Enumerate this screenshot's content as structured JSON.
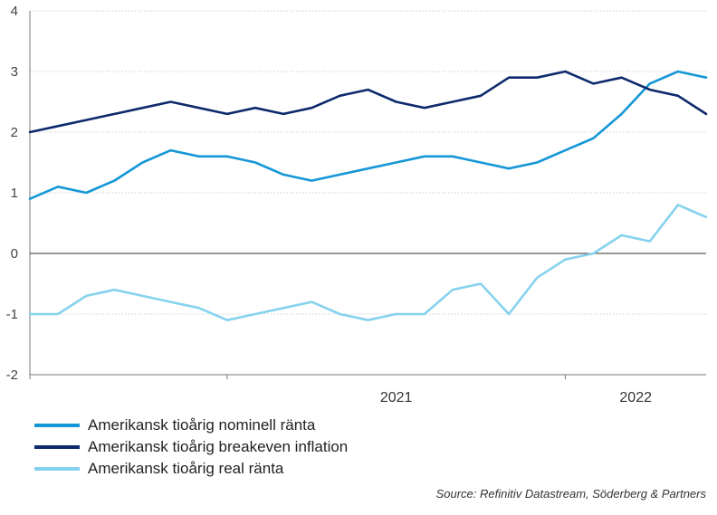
{
  "chart_data": {
    "type": "line",
    "x_start": "2020-06",
    "x_end": "2022-06",
    "x_ticks": [
      "2021",
      "2022"
    ],
    "y_ticks": [
      -2,
      -1,
      0,
      1,
      2,
      3,
      4
    ],
    "ylim": [
      -2,
      4
    ],
    "grid": true,
    "legend_position": "bottom-left",
    "series": [
      {
        "name": "Amerikansk tioårig nominell ränta",
        "color": "#1597d6",
        "x": [
          "2020-06",
          "2020-07",
          "2020-08",
          "2020-09",
          "2020-10",
          "2020-11",
          "2020-12",
          "2021-01",
          "2021-02",
          "2021-03",
          "2021-04",
          "2021-05",
          "2021-06",
          "2021-07",
          "2021-08",
          "2021-09",
          "2021-10",
          "2021-11",
          "2021-12",
          "2022-01",
          "2022-02",
          "2022-03",
          "2022-04",
          "2022-05",
          "2022-06"
        ],
        "values": [
          0.9,
          1.1,
          1.0,
          1.2,
          1.5,
          1.7,
          1.6,
          1.6,
          1.5,
          1.3,
          1.2,
          1.3,
          1.4,
          1.5,
          1.6,
          1.6,
          1.5,
          1.4,
          1.5,
          1.7,
          1.9,
          2.3,
          2.8,
          3.0,
          2.9
        ]
      },
      {
        "name": "Amerikansk tioårig breakeven inflation",
        "color": "#0d2a6c",
        "x": [
          "2020-06",
          "2020-07",
          "2020-08",
          "2020-09",
          "2020-10",
          "2020-11",
          "2020-12",
          "2021-01",
          "2021-02",
          "2021-03",
          "2021-04",
          "2021-05",
          "2021-06",
          "2021-07",
          "2021-08",
          "2021-09",
          "2021-10",
          "2021-11",
          "2021-12",
          "2022-01",
          "2022-02",
          "2022-03",
          "2022-04",
          "2022-05",
          "2022-06"
        ],
        "values": [
          2.0,
          2.1,
          2.2,
          2.3,
          2.4,
          2.5,
          2.4,
          2.3,
          2.4,
          2.3,
          2.4,
          2.6,
          2.7,
          2.5,
          2.4,
          2.5,
          2.6,
          2.9,
          2.9,
          3.0,
          2.8,
          2.9,
          2.7,
          2.6,
          2.3
        ]
      },
      {
        "name": "Amerikansk tioårig real ränta",
        "color": "#86d2ee",
        "x": [
          "2020-06",
          "2020-07",
          "2020-08",
          "2020-09",
          "2020-10",
          "2020-11",
          "2020-12",
          "2021-01",
          "2021-02",
          "2021-03",
          "2021-04",
          "2021-05",
          "2021-06",
          "2021-07",
          "2021-08",
          "2021-09",
          "2021-10",
          "2021-11",
          "2021-12",
          "2022-01",
          "2022-02",
          "2022-03",
          "2022-04",
          "2022-05",
          "2022-06"
        ],
        "values": [
          -1.0,
          -1.0,
          -0.7,
          -0.6,
          -0.7,
          -0.8,
          -0.9,
          -1.1,
          -1.0,
          -0.9,
          -0.8,
          -1.0,
          -1.1,
          -1.0,
          -1.0,
          -0.6,
          -0.5,
          -1.0,
          -0.4,
          -0.1,
          0.0,
          0.3,
          0.2,
          0.8,
          0.6
        ]
      }
    ]
  },
  "source": "Source: Refinitiv Datastream, Söderberg & Partners"
}
